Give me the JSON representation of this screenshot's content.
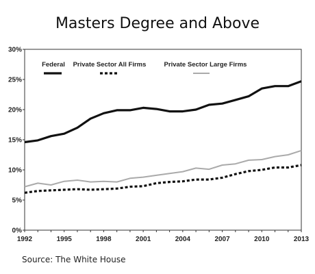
{
  "title": "Masters Degree and Above",
  "source": "Source: The White House",
  "chart_data": {
    "type": "line",
    "title": "Masters Degree and Above",
    "xlabel": "",
    "ylabel": "",
    "x": [
      1992,
      1993,
      1994,
      1995,
      1996,
      1997,
      1998,
      1999,
      2000,
      2001,
      2002,
      2003,
      2004,
      2005,
      2006,
      2007,
      2008,
      2009,
      2010,
      2011,
      2012,
      2013
    ],
    "x_tick_labels": [
      "1992",
      "1995",
      "1998",
      "2001",
      "2004",
      "2007",
      "2010",
      "2013"
    ],
    "y_tick_labels": [
      "0%",
      "5%",
      "10%",
      "15%",
      "20%",
      "25%",
      "30%"
    ],
    "ylim": [
      0,
      30
    ],
    "grid": false,
    "legend_position": "top-left",
    "series": [
      {
        "name": "Federal",
        "color": "#111111",
        "style": "solid-thick",
        "values": [
          14.6,
          14.9,
          15.6,
          16.0,
          17.0,
          18.5,
          19.4,
          19.9,
          19.9,
          20.3,
          20.1,
          19.7,
          19.7,
          20.0,
          20.8,
          21.0,
          21.6,
          22.2,
          23.5,
          23.9,
          23.9,
          24.7
        ]
      },
      {
        "name": "Private Sector All Firms",
        "color": "#111111",
        "style": "dashed-thick",
        "values": [
          6.2,
          6.5,
          6.6,
          6.7,
          6.8,
          6.7,
          6.8,
          6.9,
          7.2,
          7.3,
          7.8,
          8.0,
          8.1,
          8.4,
          8.4,
          8.7,
          9.3,
          9.8,
          10.0,
          10.4,
          10.4,
          10.8
        ]
      },
      {
        "name": "Private Sector Large Firms",
        "color": "#aaaaaa",
        "style": "solid",
        "values": [
          7.2,
          7.8,
          7.5,
          8.1,
          8.3,
          8.0,
          8.1,
          8.0,
          8.6,
          8.8,
          9.1,
          9.4,
          9.7,
          10.3,
          10.1,
          10.8,
          11.0,
          11.6,
          11.7,
          12.2,
          12.5,
          13.2
        ]
      }
    ]
  }
}
